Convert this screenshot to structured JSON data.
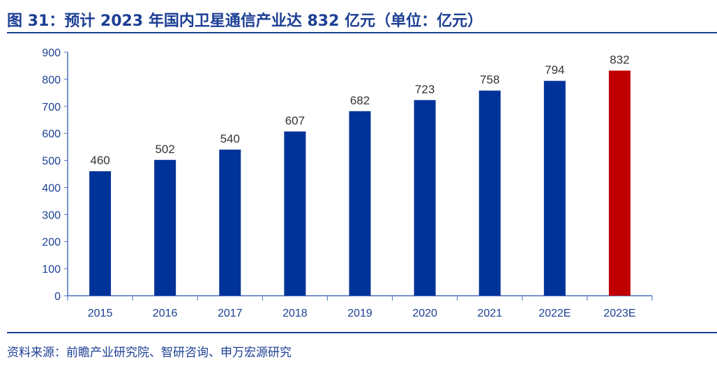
{
  "title": "图 31：预计 2023 年国内卫星通信产业达 832 亿元（单位：亿元）",
  "source": "资料来源：前瞻产业研究院、智研咨询、申万宏源研究",
  "chart_data": {
    "type": "bar",
    "categories": [
      "2015",
      "2016",
      "2017",
      "2018",
      "2019",
      "2020",
      "2021",
      "2022E",
      "2023E"
    ],
    "values": [
      460,
      502,
      540,
      607,
      682,
      723,
      758,
      794,
      832
    ],
    "ylim": [
      0,
      900
    ],
    "yticks": [
      0,
      100,
      200,
      300,
      400,
      500,
      600,
      700,
      800,
      900
    ],
    "grid": false,
    "legend": "none",
    "colors": {
      "actual": "#003399",
      "highlight": "#C00000",
      "axis": "#4a6fc0"
    },
    "highlight_category": "2023E"
  }
}
